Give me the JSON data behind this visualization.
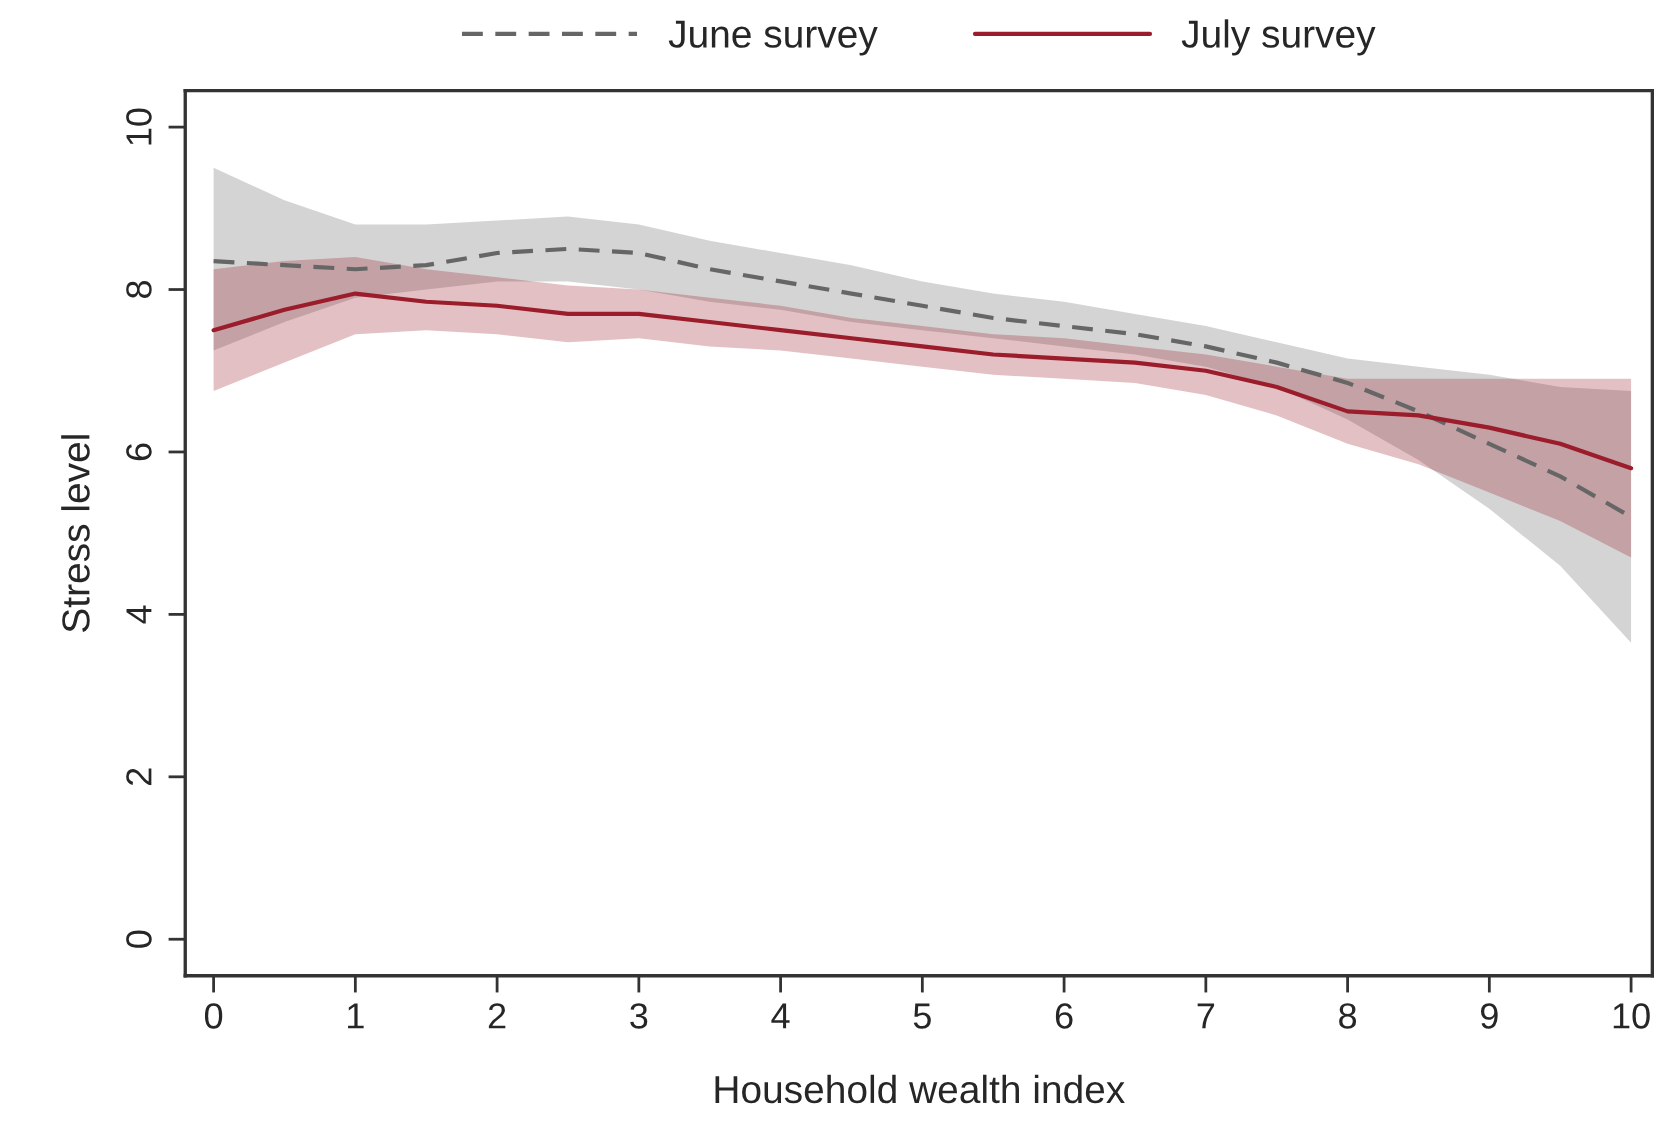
{
  "chart_data": {
    "type": "line",
    "xlabel": "Household wealth index",
    "ylabel": "Stress level",
    "x": [
      0,
      0.5,
      1,
      1.5,
      2,
      2.5,
      3,
      3.5,
      4,
      4.5,
      5,
      5.5,
      6,
      6.5,
      7,
      7.5,
      8,
      8.5,
      9,
      9.5,
      10
    ],
    "series": [
      {
        "name": "June survey",
        "color": "#666666",
        "line_style": "dashed",
        "values": [
          8.35,
          8.3,
          8.25,
          8.3,
          8.45,
          8.5,
          8.45,
          8.25,
          8.1,
          7.95,
          7.8,
          7.65,
          7.55,
          7.45,
          7.3,
          7.1,
          6.85,
          6.5,
          6.1,
          5.7,
          5.2
        ],
        "lower": [
          7.25,
          7.6,
          7.9,
          8.0,
          8.1,
          8.1,
          8.0,
          7.85,
          7.75,
          7.6,
          7.5,
          7.4,
          7.3,
          7.2,
          7.05,
          6.8,
          6.4,
          5.9,
          5.3,
          4.6,
          3.65
        ],
        "upper": [
          9.5,
          9.1,
          8.8,
          8.8,
          8.85,
          8.9,
          8.8,
          8.6,
          8.45,
          8.3,
          8.1,
          7.95,
          7.85,
          7.7,
          7.55,
          7.35,
          7.15,
          7.05,
          6.95,
          6.8,
          6.75
        ]
      },
      {
        "name": "July survey",
        "color": "#9b1c2a",
        "line_style": "solid",
        "values": [
          7.5,
          7.75,
          7.95,
          7.85,
          7.8,
          7.7,
          7.7,
          7.6,
          7.5,
          7.4,
          7.3,
          7.2,
          7.15,
          7.1,
          7.0,
          6.8,
          6.5,
          6.45,
          6.3,
          6.1,
          5.8
        ],
        "lower": [
          6.75,
          7.1,
          7.45,
          7.5,
          7.45,
          7.35,
          7.4,
          7.3,
          7.25,
          7.15,
          7.05,
          6.95,
          6.9,
          6.85,
          6.7,
          6.45,
          6.1,
          5.85,
          5.5,
          5.15,
          4.7
        ],
        "upper": [
          8.25,
          8.35,
          8.4,
          8.25,
          8.15,
          8.05,
          8.0,
          7.9,
          7.8,
          7.65,
          7.55,
          7.45,
          7.4,
          7.3,
          7.2,
          7.05,
          6.9,
          6.9,
          6.9,
          6.9,
          6.9
        ]
      }
    ],
    "xlim": [
      -0.2,
      10.15
    ],
    "ylim": [
      -0.45,
      10.45
    ],
    "xticks": [
      0,
      1,
      2,
      3,
      4,
      5,
      6,
      7,
      8,
      9,
      10
    ],
    "yticks": [
      0,
      2,
      4,
      6,
      8,
      10
    ],
    "grid": false,
    "legend": "top",
    "marker": "none"
  }
}
